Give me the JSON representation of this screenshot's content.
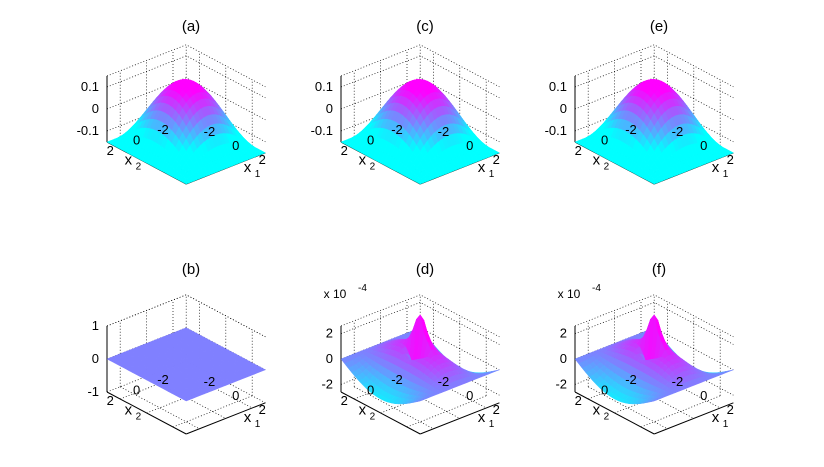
{
  "chart_data": [
    {
      "type": "surface3d",
      "panel": "(a)",
      "surface": "bump",
      "amplitude": 0.15,
      "zlim": [
        -0.15,
        0.15
      ],
      "zticks": [
        "0.1",
        "0",
        "-0.1"
      ],
      "zexponent": "",
      "x1label": "x",
      "x1sub": "1",
      "x2label": "x",
      "x2sub": "2",
      "x1ticks": [
        "-2",
        "0",
        "2"
      ],
      "x2ticks": [
        "2",
        "0",
        "-2"
      ],
      "colormap": [
        "#00ffff",
        "#ff00ff"
      ]
    },
    {
      "type": "surface3d",
      "panel": "(b)",
      "surface": "flat",
      "amplitude": 0,
      "zlim": [
        -1,
        1
      ],
      "zticks": [
        "1",
        "0",
        "-1"
      ],
      "zexponent": "",
      "x1label": "x",
      "x1sub": "1",
      "x2label": "x",
      "x2sub": "2",
      "x1ticks": [
        "-2",
        "0",
        "2"
      ],
      "x2ticks": [
        "2",
        "0",
        "-2"
      ],
      "colormap": [
        "#8080ff",
        "#8080ff"
      ]
    },
    {
      "type": "surface3d",
      "panel": "(c)",
      "surface": "bump",
      "amplitude": 0.15,
      "zlim": [
        -0.15,
        0.15
      ],
      "zticks": [
        "0.1",
        "0",
        "-0.1"
      ],
      "zexponent": "",
      "x1label": "x",
      "x1sub": "1",
      "x2label": "x",
      "x2sub": "2",
      "x1ticks": [
        "-2",
        "0",
        "2"
      ],
      "x2ticks": [
        "2",
        "0",
        "-2"
      ],
      "colormap": [
        "#00ffff",
        "#ff00ff"
      ]
    },
    {
      "type": "surface3d",
      "panel": "(d)",
      "surface": "saddle",
      "amplitude": 2.0,
      "zlim": [
        -2.6,
        2.6
      ],
      "zticks": [
        "2",
        "0",
        "-2"
      ],
      "zexponent": "x 10",
      "zexponent_power": "-4",
      "x1label": "x",
      "x1sub": "1",
      "x2label": "x",
      "x2sub": "2",
      "x1ticks": [
        "-2",
        "0",
        "2"
      ],
      "x2ticks": [
        "2",
        "0",
        "-2"
      ],
      "colormap": [
        "#00ffff",
        "#ff00ff"
      ]
    },
    {
      "type": "surface3d",
      "panel": "(e)",
      "surface": "bump",
      "amplitude": 0.15,
      "zlim": [
        -0.15,
        0.15
      ],
      "zticks": [
        "0.1",
        "0",
        "-0.1"
      ],
      "zexponent": "",
      "x1label": "x",
      "x1sub": "1",
      "x2label": "x",
      "x2sub": "2",
      "x1ticks": [
        "-2",
        "0",
        "2"
      ],
      "x2ticks": [
        "2",
        "0",
        "-2"
      ],
      "colormap": [
        "#00ffff",
        "#ff00ff"
      ]
    },
    {
      "type": "surface3d",
      "panel": "(f)",
      "surface": "saddle",
      "amplitude": 2.0,
      "zlim": [
        -2.6,
        2.6
      ],
      "zticks": [
        "2",
        "0",
        "-2"
      ],
      "zexponent": "x 10",
      "zexponent_power": "-4",
      "x1label": "x",
      "x1sub": "1",
      "x2label": "x",
      "x2sub": "2",
      "x1ticks": [
        "-2",
        "0",
        "2"
      ],
      "x2ticks": [
        "2",
        "0",
        "-2"
      ],
      "colormap": [
        "#00ffff",
        "#ff00ff"
      ]
    }
  ]
}
